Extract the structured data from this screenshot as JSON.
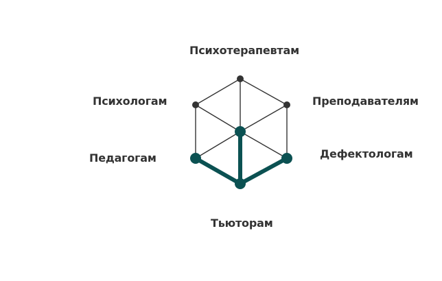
{
  "labels": {
    "top": "Психотерапевтам",
    "upper_left": "Психологам",
    "upper_right": "Преподавателям",
    "lower_left": "Педагогам",
    "lower_right": "Дефектологам",
    "bottom": "Тьюторам"
  },
  "colors": {
    "line": "#333333",
    "node": "#333333",
    "highlight": "#0b5152",
    "label": "#333333"
  },
  "highlighted_nodes": [
    "center",
    "lower-left",
    "bottom",
    "lower-right"
  ]
}
